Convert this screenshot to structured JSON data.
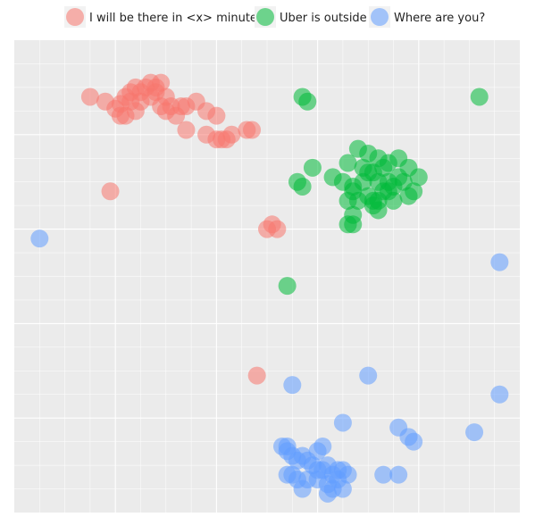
{
  "chart_data": {
    "type": "scatter",
    "title": "",
    "xlabel": "",
    "ylabel": "",
    "xlim": [
      0,
      100
    ],
    "ylim": [
      0,
      100
    ],
    "grid": true,
    "legend_position": "top",
    "background_color": "#EBEBEB",
    "grid_color": "#FFFFFF",
    "series": [
      {
        "name": "I will be there in <x> minutes",
        "color": "#F8766D",
        "points": [
          [
            15,
            88
          ],
          [
            18,
            87
          ],
          [
            20,
            85.5
          ],
          [
            21,
            86.5
          ],
          [
            22,
            88
          ],
          [
            23,
            89
          ],
          [
            24,
            90
          ],
          [
            25,
            89
          ],
          [
            26,
            90
          ],
          [
            27,
            91
          ],
          [
            28,
            90
          ],
          [
            29,
            91
          ],
          [
            23,
            87
          ],
          [
            25,
            87
          ],
          [
            27,
            88
          ],
          [
            28,
            89
          ],
          [
            30,
            88
          ],
          [
            31,
            86
          ],
          [
            30,
            85
          ],
          [
            29,
            86
          ],
          [
            24,
            85
          ],
          [
            22,
            84
          ],
          [
            32,
            84
          ],
          [
            34,
            86
          ],
          [
            36,
            87
          ],
          [
            38,
            85
          ],
          [
            40,
            84
          ],
          [
            34,
            81
          ],
          [
            38,
            80
          ],
          [
            40,
            79
          ],
          [
            42,
            79
          ],
          [
            46,
            81
          ],
          [
            47,
            81
          ],
          [
            43,
            80
          ],
          [
            41,
            79
          ],
          [
            21,
            84
          ],
          [
            33,
            86
          ],
          [
            19,
            68
          ],
          [
            50,
            60
          ],
          [
            51,
            61
          ],
          [
            52,
            60
          ],
          [
            48,
            29
          ]
        ]
      },
      {
        "name": "Uber is outside",
        "color": "#00BA38",
        "points": [
          [
            57,
            88
          ],
          [
            58,
            87
          ],
          [
            68,
            77
          ],
          [
            70,
            76
          ],
          [
            72,
            75
          ],
          [
            74,
            74
          ],
          [
            76,
            75
          ],
          [
            78,
            73
          ],
          [
            80,
            71
          ],
          [
            79,
            68
          ],
          [
            63,
            71
          ],
          [
            65,
            70
          ],
          [
            67,
            69
          ],
          [
            69,
            70
          ],
          [
            71,
            72
          ],
          [
            72,
            70
          ],
          [
            74,
            70
          ],
          [
            73,
            68
          ],
          [
            75,
            69
          ],
          [
            76,
            71
          ],
          [
            77,
            70
          ],
          [
            70,
            67
          ],
          [
            68,
            66
          ],
          [
            66,
            66
          ],
          [
            71,
            66
          ],
          [
            72,
            64
          ],
          [
            74,
            68
          ],
          [
            75,
            66
          ],
          [
            78,
            67
          ],
          [
            56,
            70
          ],
          [
            57,
            69
          ],
          [
            73,
            73
          ],
          [
            72,
            66
          ],
          [
            71,
            65
          ],
          [
            67,
            68
          ],
          [
            66,
            74
          ],
          [
            67,
            63
          ],
          [
            70,
            72
          ],
          [
            59,
            73
          ],
          [
            69,
            73
          ],
          [
            66,
            61
          ],
          [
            67,
            61
          ],
          [
            54,
            48
          ],
          [
            92,
            88
          ]
        ]
      },
      {
        "name": "Where are you?",
        "color": "#619CFF",
        "points": [
          [
            5,
            58
          ],
          [
            96,
            53
          ],
          [
            55,
            27
          ],
          [
            70,
            29
          ],
          [
            96,
            25
          ],
          [
            65,
            19
          ],
          [
            76,
            18
          ],
          [
            91,
            17
          ],
          [
            78,
            16
          ],
          [
            79,
            15
          ],
          [
            53,
            14
          ],
          [
            54,
            13
          ],
          [
            55,
            12
          ],
          [
            56,
            11
          ],
          [
            57,
            12
          ],
          [
            58,
            11
          ],
          [
            59,
            10
          ],
          [
            60,
            9
          ],
          [
            61,
            9
          ],
          [
            62,
            10
          ],
          [
            63,
            8
          ],
          [
            64,
            9
          ],
          [
            65,
            9
          ],
          [
            66,
            8
          ],
          [
            64,
            7
          ],
          [
            62,
            6
          ],
          [
            60,
            7
          ],
          [
            58,
            7
          ],
          [
            56,
            7
          ],
          [
            55,
            8
          ],
          [
            54,
            8
          ],
          [
            62,
            4
          ],
          [
            63,
            5
          ],
          [
            65,
            5
          ],
          [
            57,
            5
          ],
          [
            60,
            13
          ],
          [
            61,
            14
          ],
          [
            54,
            14
          ],
          [
            73,
            8
          ],
          [
            76,
            8
          ]
        ]
      }
    ]
  }
}
